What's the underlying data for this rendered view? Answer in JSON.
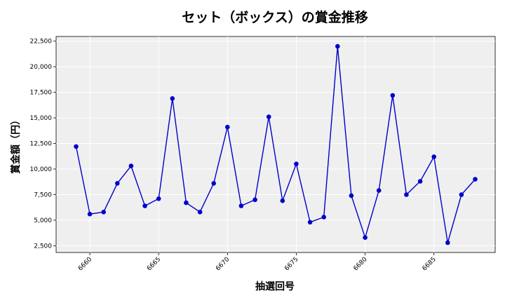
{
  "chart_data": {
    "type": "line",
    "title": "セット（ボックス）の賞金推移",
    "xlabel": "抽選回号",
    "ylabel": "賞金額（円）",
    "x": [
      6659,
      6660,
      6661,
      6662,
      6663,
      6664,
      6665,
      6666,
      6667,
      6668,
      6669,
      6670,
      6671,
      6672,
      6673,
      6674,
      6675,
      6676,
      6677,
      6678,
      6679,
      6680,
      6681,
      6682,
      6683,
      6684,
      6685,
      6686,
      6687,
      6688
    ],
    "series": [
      {
        "values": [
          12200,
          5600,
          5800,
          8600,
          10300,
          6400,
          7100,
          16900,
          6700,
          5800,
          8600,
          14100,
          6400,
          7000,
          15100,
          6900,
          10500,
          4800,
          5300,
          22000,
          7400,
          3300,
          7900,
          17200,
          7500,
          8800,
          11200,
          2800,
          7500,
          9000
        ],
        "color": "#0000cc"
      }
    ],
    "xticks": [
      6660,
      6665,
      6670,
      6675,
      6680,
      6685
    ],
    "yticks": [
      2500,
      5000,
      7500,
      10000,
      12500,
      15000,
      17500,
      20000,
      22500
    ],
    "ytick_labels": [
      "2,500",
      "5,000",
      "7,500",
      "10,000",
      "12,500",
      "15,000",
      "17,500",
      "20,000",
      "22,500"
    ],
    "xlim": [
      6657.55,
      6689.45
    ],
    "ylim": [
      1840,
      22960
    ],
    "grid": true,
    "background": "#efefef"
  }
}
